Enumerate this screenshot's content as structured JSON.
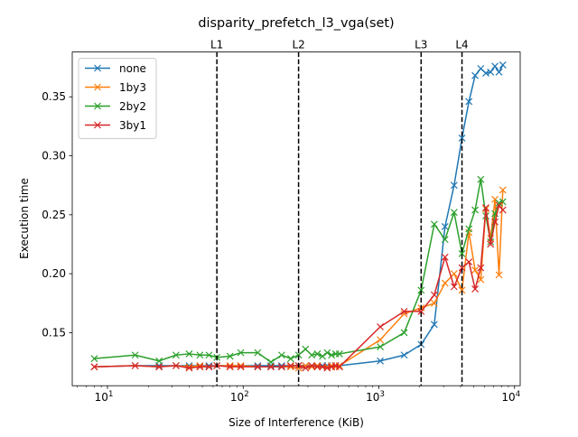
{
  "chart_data": {
    "type": "line",
    "title": "disparity_prefetch_l3_vga(set)",
    "xlabel": "Size of Interference (KiB)",
    "ylabel": "Execution time",
    "xscale": "log",
    "xlim": [
      5.5,
      11000
    ],
    "ylim": [
      0.105,
      0.388
    ],
    "x_ticks": [
      {
        "value": 10,
        "base": "10",
        "exp": "1"
      },
      {
        "value": 100,
        "base": "10",
        "exp": "2"
      },
      {
        "value": 1000,
        "base": "10",
        "exp": "3"
      },
      {
        "value": 10000,
        "base": "10",
        "exp": "4"
      }
    ],
    "y_ticks": [
      {
        "value": 0.15,
        "label": "0.15"
      },
      {
        "value": 0.2,
        "label": "0.20"
      },
      {
        "value": 0.25,
        "label": "0.25"
      },
      {
        "value": 0.3,
        "label": "0.30"
      },
      {
        "value": 0.35,
        "label": "0.35"
      }
    ],
    "grid": false,
    "legend": "top-left",
    "cache_lines": [
      {
        "label": "L1",
        "x": 64
      },
      {
        "label": "L2",
        "x": 256
      },
      {
        "label": "L3",
        "x": 2048
      },
      {
        "label": "L4",
        "x": 4096
      }
    ],
    "series": [
      {
        "name": "none",
        "color": "#1f77b4",
        "x": [
          8,
          16,
          24,
          32,
          40,
          48,
          56,
          64,
          80,
          96,
          128,
          160,
          192,
          224,
          256,
          288,
          320,
          352,
          384,
          416,
          448,
          480,
          512,
          1024,
          1536,
          2048,
          2560,
          3072,
          3584,
          4096,
          4608,
          5120,
          5632,
          6144,
          6656,
          7168,
          7680,
          8192
        ],
        "y": [
          0.121,
          0.122,
          0.122,
          0.122,
          0.122,
          0.122,
          0.122,
          0.122,
          0.122,
          0.122,
          0.122,
          0.122,
          0.122,
          0.122,
          0.122,
          0.122,
          0.122,
          0.122,
          0.122,
          0.122,
          0.122,
          0.122,
          0.122,
          0.126,
          0.131,
          0.14,
          0.157,
          0.24,
          0.275,
          0.315,
          0.346,
          0.368,
          0.374,
          0.37,
          0.371,
          0.376,
          0.371,
          0.377
        ]
      },
      {
        "name": "1by3",
        "color": "#ff7f0e",
        "x": [
          8,
          16,
          24,
          32,
          40,
          48,
          56,
          64,
          80,
          96,
          128,
          160,
          192,
          224,
          256,
          288,
          320,
          352,
          384,
          416,
          448,
          480,
          512,
          1024,
          1536,
          2048,
          2560,
          3072,
          3584,
          4096,
          4608,
          5120,
          5632,
          6144,
          6656,
          7168,
          7680,
          8192
        ],
        "y": [
          0.121,
          0.122,
          0.121,
          0.122,
          0.121,
          0.122,
          0.121,
          0.122,
          0.122,
          0.122,
          0.121,
          0.121,
          0.121,
          0.121,
          0.12,
          0.122,
          0.121,
          0.122,
          0.121,
          0.121,
          0.122,
          0.121,
          0.122,
          0.144,
          0.166,
          0.171,
          0.175,
          0.192,
          0.2,
          0.186,
          0.235,
          0.203,
          0.195,
          0.255,
          0.23,
          0.263,
          0.199,
          0.271
        ]
      },
      {
        "name": "2by2",
        "color": "#2ca02c",
        "x": [
          8,
          16,
          24,
          32,
          40,
          48,
          56,
          64,
          80,
          96,
          128,
          160,
          192,
          224,
          256,
          288,
          320,
          352,
          384,
          416,
          448,
          480,
          512,
          1024,
          1536,
          2048,
          2560,
          3072,
          3584,
          4096,
          4608,
          5120,
          5632,
          6144,
          6656,
          7168,
          7680,
          8192
        ],
        "y": [
          0.128,
          0.131,
          0.126,
          0.131,
          0.132,
          0.131,
          0.131,
          0.129,
          0.13,
          0.133,
          0.133,
          0.125,
          0.131,
          0.128,
          0.131,
          0.136,
          0.131,
          0.132,
          0.13,
          0.133,
          0.131,
          0.132,
          0.132,
          0.138,
          0.15,
          0.186,
          0.242,
          0.229,
          0.252,
          0.217,
          0.238,
          0.254,
          0.28,
          0.249,
          0.227,
          0.251,
          0.26,
          0.261
        ]
      },
      {
        "name": "3by1",
        "color": "#d62728",
        "x": [
          8,
          16,
          24,
          32,
          40,
          48,
          56,
          64,
          80,
          96,
          128,
          160,
          192,
          224,
          256,
          288,
          320,
          352,
          384,
          416,
          448,
          480,
          512,
          1024,
          1536,
          2048,
          2560,
          3072,
          3584,
          4096,
          4608,
          5120,
          5632,
          6144,
          6656,
          7168,
          7680,
          8192
        ],
        "y": [
          0.121,
          0.122,
          0.121,
          0.122,
          0.12,
          0.121,
          0.121,
          0.122,
          0.121,
          0.121,
          0.121,
          0.121,
          0.121,
          0.122,
          0.122,
          0.12,
          0.122,
          0.121,
          0.121,
          0.12,
          0.121,
          0.122,
          0.121,
          0.155,
          0.168,
          0.168,
          0.182,
          0.214,
          0.189,
          0.205,
          0.21,
          0.187,
          0.205,
          0.256,
          0.225,
          0.244,
          0.258,
          0.254
        ]
      }
    ]
  }
}
